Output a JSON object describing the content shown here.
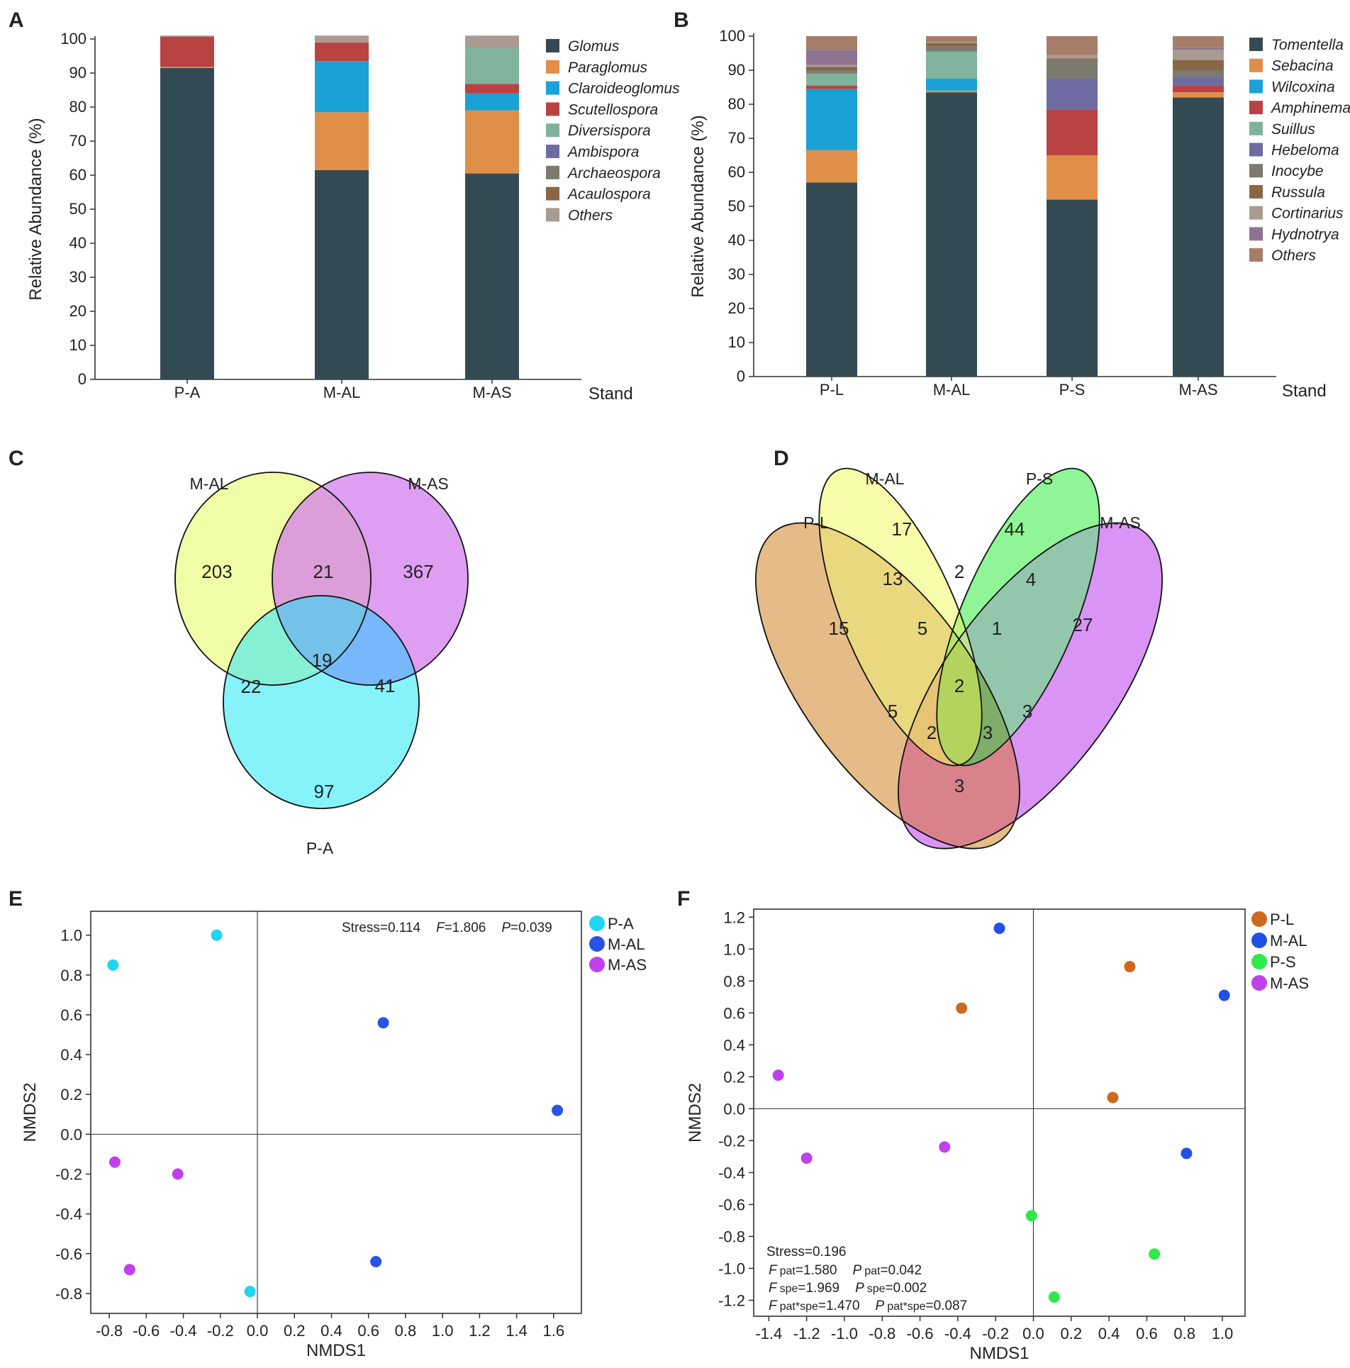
{
  "chart_data": [
    {
      "panel": "A",
      "type": "bar",
      "stacked": true,
      "ylabel": "Relative Abundance (%)",
      "xlabel": "Stand",
      "ylim": [
        0,
        100
      ],
      "yticks": [
        0,
        10,
        20,
        30,
        40,
        50,
        60,
        70,
        80,
        90,
        100
      ],
      "categories": [
        "P-A",
        "M-AL",
        "M-AS"
      ],
      "series": [
        {
          "name": "Glomus",
          "color": "#344a52",
          "values": [
            91.5,
            61.5,
            60.5
          ]
        },
        {
          "name": "Paraglomus",
          "color": "#e08f48",
          "values": [
            0.3,
            17,
            18.5
          ]
        },
        {
          "name": "Claroideoglomus",
          "color": "#1aa2d6",
          "values": [
            0,
            15,
            5
          ]
        },
        {
          "name": "Scutellospora",
          "color": "#b94343",
          "values": [
            8.9,
            5.5,
            2.8
          ]
        },
        {
          "name": "Diversispora",
          "color": "#7fb39b",
          "values": [
            0,
            0,
            10.5
          ]
        },
        {
          "name": "Ambispora",
          "color": "#6e6ba3",
          "values": [
            0,
            0,
            0
          ]
        },
        {
          "name": "Archaeospora",
          "color": "#7c7a6e",
          "values": [
            0,
            0,
            0
          ]
        },
        {
          "name": "Acaulospora",
          "color": "#8b6646",
          "values": [
            0,
            0,
            0
          ]
        },
        {
          "name": "Others",
          "color": "#a99b91",
          "values": [
            0.3,
            2,
            3.7
          ]
        }
      ]
    },
    {
      "panel": "B",
      "type": "bar",
      "stacked": true,
      "ylabel": "Relative Abundance (%)",
      "xlabel": "Stand",
      "ylim": [
        0,
        100
      ],
      "yticks": [
        0,
        10,
        20,
        30,
        40,
        50,
        60,
        70,
        80,
        90,
        100
      ],
      "categories": [
        "P-L",
        "M-AL",
        "P-S",
        "M-AS"
      ],
      "series": [
        {
          "name": "Tomentella",
          "color": "#344a52",
          "values": [
            57,
            83.5,
            52,
            82
          ]
        },
        {
          "name": "Sebacina",
          "color": "#e08f48",
          "values": [
            9.5,
            0.5,
            13,
            1.5
          ]
        },
        {
          "name": "Wilcoxina",
          "color": "#1aa2d6",
          "values": [
            18,
            3.5,
            0,
            0
          ]
        },
        {
          "name": "Amphinema",
          "color": "#b94343",
          "values": [
            1,
            0,
            13.5,
            2
          ]
        },
        {
          "name": "Suillus",
          "color": "#7fb39b",
          "values": [
            3.5,
            8,
            0,
            0
          ]
        },
        {
          "name": "Hebeloma",
          "color": "#6e6ba3",
          "values": [
            0,
            0,
            9,
            2.5
          ]
        },
        {
          "name": "Inocybe",
          "color": "#7c7a6e",
          "values": [
            1,
            1.5,
            5.5,
            2
          ]
        },
        {
          "name": "Russula",
          "color": "#8b6646",
          "values": [
            1,
            1,
            0.5,
            3
          ]
        },
        {
          "name": "Cortinarius",
          "color": "#a99b91",
          "values": [
            0.5,
            0.3,
            1,
            3
          ]
        },
        {
          "name": "Hydnotrya",
          "color": "#8d7490",
          "values": [
            4.5,
            0,
            0,
            0.5
          ]
        },
        {
          "name": "Others",
          "color": "#a57d68",
          "values": [
            4,
            1.7,
            5.5,
            3.5
          ]
        }
      ]
    },
    {
      "panel": "C",
      "type": "venn",
      "sets": [
        "M-AL",
        "M-AS",
        "P-A"
      ],
      "regions": [
        {
          "sets": [
            "M-AL"
          ],
          "value": 203
        },
        {
          "sets": [
            "M-AS"
          ],
          "value": 367
        },
        {
          "sets": [
            "P-A"
          ],
          "value": 97
        },
        {
          "sets": [
            "M-AL",
            "M-AS"
          ],
          "value": 21
        },
        {
          "sets": [
            "M-AL",
            "P-A"
          ],
          "value": 22
        },
        {
          "sets": [
            "M-AS",
            "P-A"
          ],
          "value": 41
        },
        {
          "sets": [
            "M-AL",
            "M-AS",
            "P-A"
          ],
          "value": 19
        }
      ]
    },
    {
      "panel": "D",
      "type": "venn",
      "sets": [
        "P-L",
        "M-AL",
        "P-S",
        "M-AS"
      ],
      "region_values": [
        "15",
        "17",
        "44",
        "27",
        "13",
        "2",
        "4",
        "5",
        "1",
        "5",
        "2",
        "3",
        "2",
        "3",
        "3"
      ]
    },
    {
      "panel": "E",
      "type": "scatter",
      "xlabel": "NMDS1",
      "ylabel": "NMDS2",
      "xlim": [
        -0.9,
        1.75
      ],
      "ylim": [
        -0.9,
        1.12
      ],
      "xticks": [
        "-0.8",
        "-0.6",
        "-0.4",
        "-0.2",
        "0.0",
        "0.2",
        "0.4",
        "0.6",
        "0.8",
        "1.0",
        "1.2",
        "1.4",
        "1.6"
      ],
      "yticks": [
        "-0.8",
        "-0.6",
        "-0.4",
        "-0.2",
        "0.0",
        "0.2",
        "0.4",
        "0.6",
        "0.8",
        "1.0"
      ],
      "annotation": {
        "stress": "Stress=0.114",
        "f_label": "F",
        "f_value": "=1.806",
        "p_label": "P",
        "p_value": "=0.039"
      },
      "series": [
        {
          "name": "P-A",
          "color": "#22d5ee",
          "points": [
            [
              -0.78,
              0.85
            ],
            [
              -0.22,
              1.0
            ],
            [
              -0.04,
              -0.79
            ]
          ]
        },
        {
          "name": "M-AL",
          "color": "#2854e6",
          "points": [
            [
              0.68,
              0.56
            ],
            [
              1.62,
              0.12
            ],
            [
              0.64,
              -0.64
            ]
          ]
        },
        {
          "name": "M-AS",
          "color": "#c040ee",
          "points": [
            [
              -0.77,
              -0.14
            ],
            [
              -0.43,
              -0.2
            ],
            [
              -0.69,
              -0.68
            ]
          ]
        }
      ]
    },
    {
      "panel": "F",
      "type": "scatter",
      "xlabel": "NMDS1",
      "ylabel": "NMDS2",
      "xlim": [
        -1.48,
        1.12
      ],
      "ylim": [
        -1.3,
        1.25
      ],
      "xticks": [
        "-1.4",
        "-1.2",
        "-1.0",
        "-0.8",
        "-0.6",
        "-0.4",
        "-0.2",
        "0.0",
        "0.2",
        "0.4",
        "0.6",
        "0.8",
        "1.0"
      ],
      "yticks": [
        "-1.2",
        "-1.0",
        "-0.8",
        "-0.6",
        "-0.4",
        "-0.2",
        "0.0",
        "0.2",
        "0.4",
        "0.6",
        "0.8",
        "1.0",
        "1.2"
      ],
      "annotation": {
        "stress": "Stress=0.196",
        "lines": [
          {
            "f_label": "F",
            "f_sub": "pat",
            "f_val": "=1.580",
            "p_label": "P",
            "p_sub": "pat",
            "p_val": "=0.042"
          },
          {
            "f_label": "F",
            "f_sub": "spe",
            "f_val": "=1.969",
            "p_label": "P",
            "p_sub": "spe",
            "p_val": "=0.002"
          },
          {
            "f_label": "F",
            "f_sub": "pat*spe",
            "f_val": "=1.470",
            "p_label": "P",
            "p_sub": "pat*spe",
            "p_val": "=0.087"
          }
        ]
      },
      "series": [
        {
          "name": "P-L",
          "color": "#cc6a1f",
          "points": [
            [
              -0.38,
              0.63
            ],
            [
              0.51,
              0.89
            ],
            [
              0.42,
              0.07
            ]
          ]
        },
        {
          "name": "M-AL",
          "color": "#2050e8",
          "points": [
            [
              -0.18,
              1.13
            ],
            [
              1.01,
              0.71
            ],
            [
              0.81,
              -0.28
            ]
          ]
        },
        {
          "name": "P-S",
          "color": "#2eea48",
          "points": [
            [
              -0.01,
              -0.67
            ],
            [
              0.64,
              -0.91
            ],
            [
              0.11,
              -1.18
            ]
          ]
        },
        {
          "name": "M-AS",
          "color": "#c040ee",
          "points": [
            [
              -1.35,
              0.21
            ],
            [
              -1.2,
              -0.31
            ],
            [
              -0.47,
              -0.24
            ]
          ]
        }
      ]
    }
  ]
}
